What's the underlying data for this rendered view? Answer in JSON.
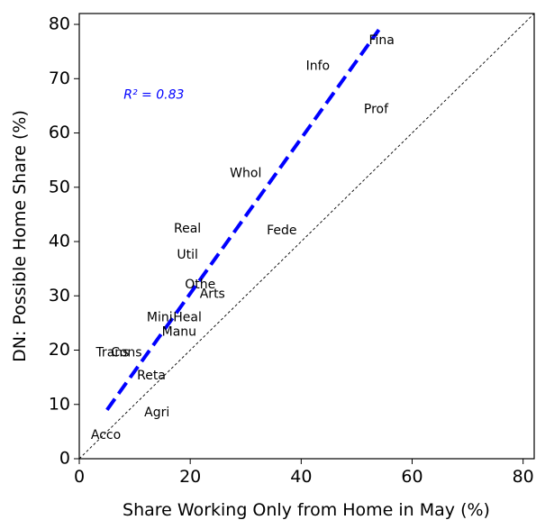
{
  "chart_data": {
    "type": "scatter",
    "title": "",
    "xlabel": "Share Working Only from Home in May (%)",
    "ylabel": "DN: Possible Home Share (%)",
    "xlim": [
      0,
      82
    ],
    "ylim": [
      0,
      82
    ],
    "xticks": [
      0,
      20,
      40,
      60,
      80
    ],
    "yticks": [
      0,
      10,
      20,
      30,
      40,
      50,
      60,
      70,
      80
    ],
    "grid": false,
    "legend": "none",
    "points": [
      {
        "label": "Fina",
        "x": 54.5,
        "y": 77.0
      },
      {
        "label": "Info",
        "x": 43.0,
        "y": 72.3
      },
      {
        "label": "Prof",
        "x": 53.5,
        "y": 64.3
      },
      {
        "label": "Whol",
        "x": 30.0,
        "y": 52.5
      },
      {
        "label": "Real",
        "x": 19.5,
        "y": 42.3
      },
      {
        "label": "Fede",
        "x": 36.5,
        "y": 42.0
      },
      {
        "label": "Util",
        "x": 19.5,
        "y": 37.5
      },
      {
        "label": "Othe",
        "x": 21.8,
        "y": 32.0
      },
      {
        "label": "Arts",
        "x": 24.0,
        "y": 30.3
      },
      {
        "label": "Mini",
        "x": 14.5,
        "y": 26.0
      },
      {
        "label": "Heal",
        "x": 19.5,
        "y": 26.0
      },
      {
        "label": "Manu",
        "x": 18.0,
        "y": 23.3
      },
      {
        "label": "Trans",
        "x": 6.0,
        "y": 19.5
      },
      {
        "label": "Cons",
        "x": 8.5,
        "y": 19.5
      },
      {
        "label": "Reta",
        "x": 13.0,
        "y": 15.3
      },
      {
        "label": "Agri",
        "x": 14.0,
        "y": 8.5
      },
      {
        "label": "Acco",
        "x": 4.8,
        "y": 4.3
      }
    ],
    "fit_line": {
      "x": [
        5.0,
        54.0
      ],
      "y": [
        9.0,
        79.0
      ],
      "color": "#0000ff",
      "style": "dashed"
    },
    "diagonal": {
      "x": [
        0,
        82
      ],
      "y": [
        0,
        82
      ],
      "color": "#000000",
      "style": "dotted"
    },
    "annotation": {
      "text": "R² = 0.83",
      "x": 8.0,
      "y": 67.0,
      "color": "#0000ff"
    }
  }
}
